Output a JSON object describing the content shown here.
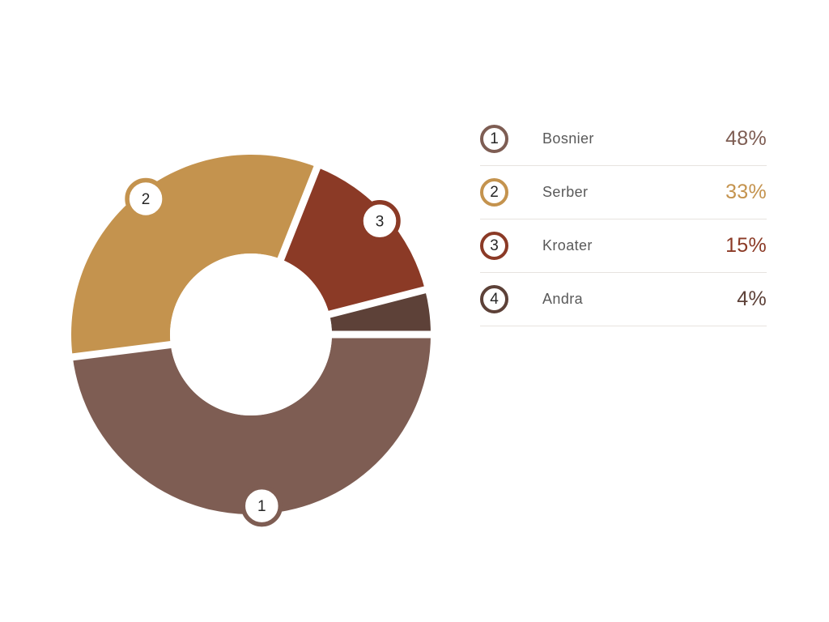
{
  "chart_data": {
    "type": "pie",
    "subtype": "donut",
    "title": "",
    "legend_position": "right",
    "categories": [
      "Bosnier",
      "Serber",
      "Kroater",
      "Andra"
    ],
    "values": [
      48,
      33,
      15,
      4
    ],
    "items": [
      {
        "number": "1",
        "label": "Bosnier",
        "value": 48,
        "display": "48%",
        "color": "#7e5d53",
        "badge": true
      },
      {
        "number": "2",
        "label": "Serber",
        "value": 33,
        "display": "33%",
        "color": "#c4934e",
        "badge": true
      },
      {
        "number": "3",
        "label": "Kroater",
        "value": 15,
        "display": "15%",
        "color": "#8b3a26",
        "badge": true
      },
      {
        "number": "4",
        "label": "Andra",
        "value": 4,
        "display": "4%",
        "color": "#5d4138",
        "badge": false
      }
    ],
    "layout_hints": {
      "start_angle_deg": 0,
      "direction": "counterclockwise",
      "segment_order_from_0deg": [
        "Andra",
        "Kroater",
        "Serber",
        "Bosnier"
      ],
      "gap_between_segments": true,
      "donut_hole_ratio": 0.45
    }
  },
  "colors": {
    "background": "#ffffff",
    "label_text": "#595959",
    "number_text": "#262626",
    "separator": "#e7e3df",
    "badge_fill": "#ffffff",
    "gap_stroke": "#ffffff"
  }
}
